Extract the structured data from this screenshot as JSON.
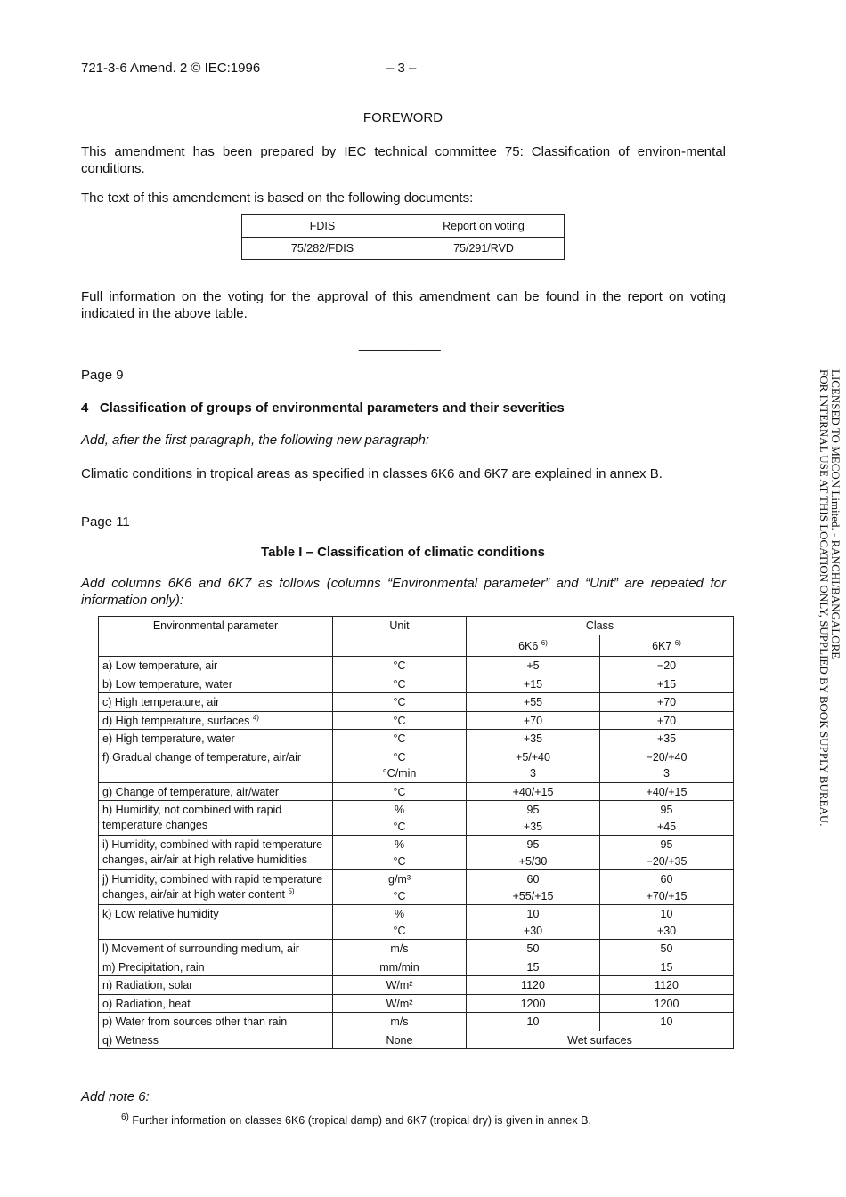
{
  "header": {
    "doc_id": "721-3-6 Amend. 2 © IEC:1996",
    "page_number": "– 3 –"
  },
  "foreword": {
    "title": "FOREWORD",
    "p1": "This amendment has been prepared by IEC technical committee 75: Classification of environ-mental conditions.",
    "p2": "The text of this amendement is based on the following documents:",
    "table": {
      "headers": [
        "FDIS",
        "Report on voting"
      ],
      "row": [
        "75/282/FDIS",
        "75/291/RVD"
      ]
    },
    "p3": "Full information on the voting for the approval of this amendment can be found in the report on voting indicated in the above table.",
    "separator": "___________"
  },
  "page9": {
    "label": "Page 9",
    "heading": "4   Classification of groups of environmental parameters and their severities",
    "instruction": "Add, after the first paragraph, the following new paragraph:",
    "text": "Climatic conditions in tropical areas as specified in classes 6K6 and 6K7 are explained in annex B."
  },
  "page11": {
    "label": "Page 11",
    "table_title": "Table I – Classification of climatic conditions",
    "instruction": "Add columns 6K6 and 6K7 as follows (columns “Environmental parameter” and “Unit” are repeated for information only):"
  },
  "climatic_table": {
    "headers": {
      "parameter": "Environmental parameter",
      "unit": "Unit",
      "class": "Class",
      "k6": "6K6",
      "k6_note": "6)",
      "k7": "6K7",
      "k7_note": "6)"
    },
    "rows": [
      {
        "param": "a) Low temperature, air",
        "units": [
          "°C"
        ],
        "k6": [
          "+5"
        ],
        "k7": [
          "−20"
        ]
      },
      {
        "param": "b) Low temperature, water",
        "units": [
          "°C"
        ],
        "k6": [
          "+15"
        ],
        "k7": [
          "+15"
        ]
      },
      {
        "param": "c) High temperature, air",
        "units": [
          "°C"
        ],
        "k6": [
          "+55"
        ],
        "k7": [
          "+70"
        ]
      },
      {
        "param": "d) High temperature, surfaces",
        "note": "4)",
        "units": [
          "°C"
        ],
        "k6": [
          "+70"
        ],
        "k7": [
          "+70"
        ]
      },
      {
        "param": "e) High temperature, water",
        "units": [
          "°C"
        ],
        "k6": [
          "+35"
        ],
        "k7": [
          "+35"
        ]
      },
      {
        "param": "f) Gradual change of temperature, air/air",
        "units": [
          "°C",
          "°C/min"
        ],
        "k6": [
          "+5/+40",
          "3"
        ],
        "k7": [
          "−20/+40",
          "3"
        ]
      },
      {
        "param": "g) Change of temperature, air/water",
        "units": [
          "°C"
        ],
        "k6": [
          "+40/+15"
        ],
        "k7": [
          "+40/+15"
        ]
      },
      {
        "param": "h) Humidity, not combined with rapid temperature changes",
        "units": [
          "%",
          "°C"
        ],
        "k6": [
          "95",
          "+35"
        ],
        "k7": [
          "95",
          "+45"
        ]
      },
      {
        "param": "i) Humidity, combined with rapid temperature changes, air/air at high relative humidities",
        "units": [
          "%",
          "°C"
        ],
        "k6": [
          "95",
          "+5/30"
        ],
        "k7": [
          "95",
          "−20/+35"
        ]
      },
      {
        "param": "j) Humidity, combined with rapid temperature changes, air/air at high water content",
        "note": "5)",
        "units": [
          "g/m³",
          "°C"
        ],
        "k6": [
          "60",
          "+55/+15"
        ],
        "k7": [
          "60",
          "+70/+15"
        ]
      },
      {
        "param": "k) Low relative humidity",
        "units": [
          "%",
          "°C"
        ],
        "k6": [
          "10",
          "+30"
        ],
        "k7": [
          "10",
          "+30"
        ]
      },
      {
        "param": "l) Movement of surrounding medium, air",
        "units": [
          "m/s"
        ],
        "k6": [
          "50"
        ],
        "k7": [
          "50"
        ]
      },
      {
        "param": "m) Precipitation, rain",
        "units": [
          "mm/min"
        ],
        "k6": [
          "15"
        ],
        "k7": [
          "15"
        ]
      },
      {
        "param": "n) Radiation, solar",
        "units": [
          "W/m²"
        ],
        "k6": [
          "1120"
        ],
        "k7": [
          "1120"
        ]
      },
      {
        "param": "o) Radiation, heat",
        "units": [
          "W/m²"
        ],
        "k6": [
          "1200"
        ],
        "k7": [
          "1200"
        ]
      },
      {
        "param": "p) Water from sources other than rain",
        "units": [
          "m/s"
        ],
        "k6": [
          "10"
        ],
        "k7": [
          "10"
        ]
      },
      {
        "param": "q) Wetness",
        "units": [
          "None"
        ],
        "merged": "Wet surfaces"
      }
    ]
  },
  "note": {
    "instruction": "Add note 6:",
    "marker": "6)",
    "text": "Further information on classes 6K6 (tropical damp) and 6K7 (tropical dry) is given in annex B."
  },
  "watermark": {
    "line1": "LICENSED TO MECON Limited. - RANCHI/BANGALORE",
    "line2": "FOR INTERNAL USE AT THIS LOCATION ONLY, SUPPLIED BY BOOK SUPPLY BUREAU."
  }
}
